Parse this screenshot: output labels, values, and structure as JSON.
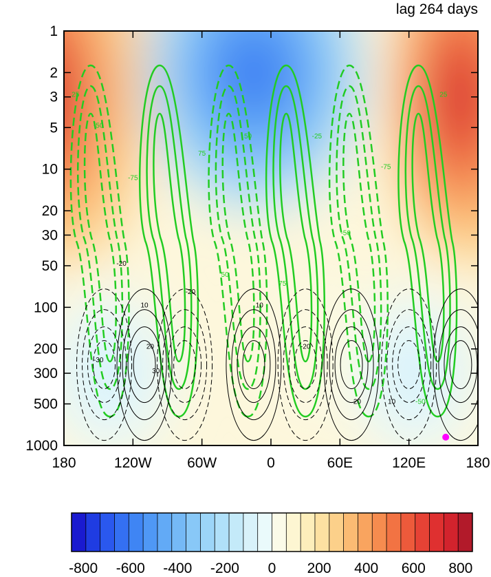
{
  "chart_data": {
    "type": "heatmap",
    "title": "lag 264 days",
    "xlabel": "",
    "ylabel": "",
    "x_ticks": [
      "180",
      "120W",
      "60W",
      "0",
      "60E",
      "120E",
      "180"
    ],
    "x_tick_values": [
      -180,
      -120,
      -60,
      0,
      60,
      120,
      180
    ],
    "y_ticks": [
      "1",
      "2",
      "3",
      "5",
      "10",
      "20",
      "30",
      "50",
      "100",
      "200",
      "300",
      "500",
      "1000"
    ],
    "y_tick_values": [
      1,
      2,
      3,
      5,
      10,
      20,
      30,
      50,
      100,
      200,
      300,
      500,
      1000
    ],
    "y_scale": "log",
    "y_inverted": true,
    "xlim": [
      -180,
      180
    ],
    "ylim": [
      1000,
      1
    ],
    "colorbar": {
      "orientation": "horizontal",
      "labels": [
        "-800",
        "-600",
        "-400",
        "-200",
        "0",
        "200",
        "400",
        "600",
        "800"
      ],
      "label_values": [
        -800,
        -600,
        -400,
        -200,
        0,
        200,
        400,
        600,
        800
      ],
      "levels_range": [
        -850,
        850
      ],
      "level_step": 50,
      "colors": [
        "#1a1ad0",
        "#1f3ce2",
        "#2a58ee",
        "#3470f2",
        "#3f85f4",
        "#4f98f5",
        "#62aaf6",
        "#75b9f6",
        "#88c8f7",
        "#9cd5f8",
        "#b0e0f9",
        "#c4eaf9",
        "#d8f2fa",
        "#eafafb",
        "#fbfbe8",
        "#fdf6d2",
        "#fdeebb",
        "#fde1a2",
        "#fcd08a",
        "#fbbb73",
        "#f9a45f",
        "#f68c4f",
        "#f27343",
        "#ed5a3b",
        "#e64235",
        "#df3030",
        "#d2232d",
        "#b21a2a"
      ]
    },
    "filled_field": {
      "description_values": "geopotential-like anomaly, positive near 180 upper levels, negative near 20W upper levels",
      "centers": [
        {
          "lon": -170,
          "p": 3,
          "value": 700
        },
        {
          "lon": 165,
          "p": 3,
          "value": 750
        },
        {
          "lon": -15,
          "p": 2,
          "value": -650
        },
        {
          "lon": -140,
          "p": 300,
          "value": -100
        },
        {
          "lon": 125,
          "p": 300,
          "value": -100
        },
        {
          "lon": 40,
          "p": 200,
          "value": 80
        }
      ]
    },
    "green_contours": {
      "color": "#22cc22",
      "labels": [
        "25",
        "50",
        "75",
        "-25",
        "-50",
        "-75"
      ],
      "levels": [
        -75,
        -50,
        -25,
        25,
        50,
        75
      ]
    },
    "black_contours": {
      "color": "#000000",
      "labels": [
        "10",
        "20",
        "30",
        "-10",
        "-20",
        "-30"
      ],
      "levels": [
        -30,
        -20,
        -10,
        10,
        20,
        30
      ]
    },
    "marker": {
      "lon": 152,
      "p": 870,
      "color": "#ff00ff"
    }
  }
}
